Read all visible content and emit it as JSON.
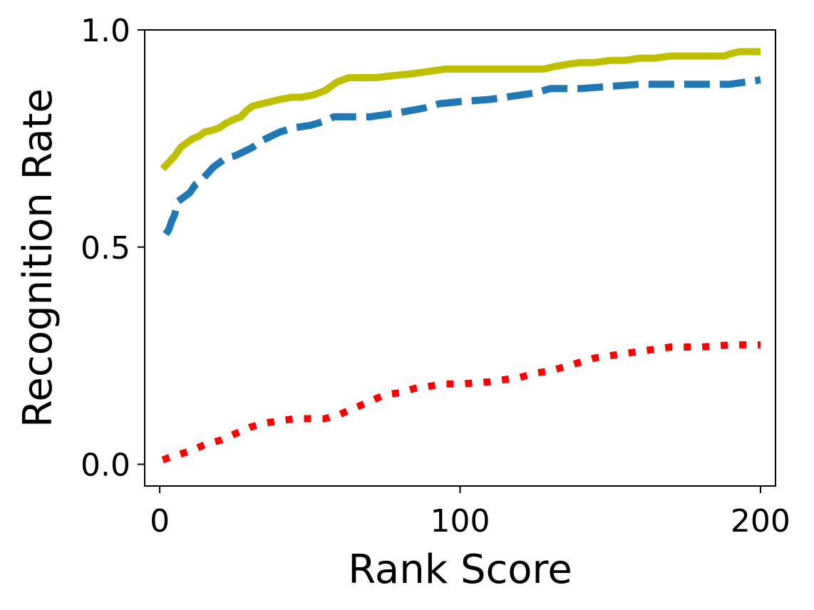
{
  "chart_data": {
    "type": "line",
    "title": "",
    "xlabel": "Rank Score",
    "ylabel": "Recognition Rate",
    "xlim": [
      -5,
      205
    ],
    "ylim": [
      -0.05,
      1.0
    ],
    "xticks": [
      0,
      100,
      200
    ],
    "xtick_labels": [
      "0",
      "100",
      "200"
    ],
    "yticks": [
      0.0,
      0.5,
      1.0
    ],
    "ytick_labels": [
      "0.0",
      "0.5",
      "1.0"
    ],
    "grid": false,
    "legend": "none",
    "series": [
      {
        "color": "#bfbf00",
        "style": "solid",
        "x": [
          1,
          3,
          5,
          7,
          9,
          11,
          13,
          15,
          18,
          20,
          22,
          25,
          27,
          29,
          31,
          34,
          37,
          40,
          44,
          47,
          51,
          55,
          57,
          59,
          61,
          63,
          67,
          72,
          78,
          85,
          90,
          95,
          100,
          110,
          120,
          128,
          131,
          135,
          140,
          145,
          150,
          155,
          160,
          165,
          170,
          175,
          180,
          185,
          188,
          190,
          193,
          196,
          200
        ],
        "y": [
          0.68,
          0.695,
          0.71,
          0.73,
          0.74,
          0.75,
          0.755,
          0.765,
          0.77,
          0.775,
          0.785,
          0.795,
          0.8,
          0.815,
          0.825,
          0.83,
          0.835,
          0.84,
          0.845,
          0.845,
          0.85,
          0.86,
          0.87,
          0.88,
          0.885,
          0.89,
          0.89,
          0.89,
          0.895,
          0.9,
          0.905,
          0.91,
          0.91,
          0.91,
          0.91,
          0.91,
          0.915,
          0.92,
          0.925,
          0.925,
          0.93,
          0.93,
          0.935,
          0.935,
          0.94,
          0.94,
          0.94,
          0.94,
          0.94,
          0.945,
          0.95,
          0.95,
          0.95
        ]
      },
      {
        "color": "#1f77b4",
        "style": "dashed",
        "x": [
          2,
          3,
          4,
          5,
          6,
          8,
          10,
          12,
          14,
          16,
          18,
          20,
          22,
          25,
          28,
          31,
          34,
          37,
          40,
          45,
          50,
          55,
          58,
          62,
          70,
          80,
          88,
          93,
          100,
          110,
          120,
          125,
          130,
          140,
          150,
          160,
          170,
          180,
          190,
          195,
          200
        ],
        "y": [
          0.53,
          0.54,
          0.56,
          0.575,
          0.605,
          0.615,
          0.625,
          0.645,
          0.655,
          0.67,
          0.685,
          0.695,
          0.705,
          0.71,
          0.72,
          0.73,
          0.745,
          0.755,
          0.765,
          0.775,
          0.78,
          0.79,
          0.8,
          0.8,
          0.8,
          0.81,
          0.82,
          0.83,
          0.835,
          0.84,
          0.85,
          0.855,
          0.865,
          0.865,
          0.87,
          0.875,
          0.875,
          0.875,
          0.875,
          0.88,
          0.885
        ]
      },
      {
        "color": "#ff0000",
        "style": "dotted",
        "x": [
          1,
          5,
          10,
          15,
          20,
          25,
          30,
          35,
          40,
          45,
          50,
          55,
          60,
          65,
          70,
          75,
          80,
          85,
          90,
          95,
          100,
          110,
          120,
          125,
          130,
          135,
          140,
          145,
          150,
          160,
          165,
          170,
          180,
          190,
          200
        ],
        "y": [
          0.01,
          0.02,
          0.03,
          0.045,
          0.055,
          0.07,
          0.085,
          0.095,
          0.1,
          0.105,
          0.105,
          0.105,
          0.115,
          0.13,
          0.145,
          0.16,
          0.165,
          0.175,
          0.18,
          0.185,
          0.185,
          0.19,
          0.2,
          0.21,
          0.215,
          0.225,
          0.235,
          0.245,
          0.25,
          0.26,
          0.265,
          0.27,
          0.27,
          0.275,
          0.275
        ]
      }
    ]
  }
}
